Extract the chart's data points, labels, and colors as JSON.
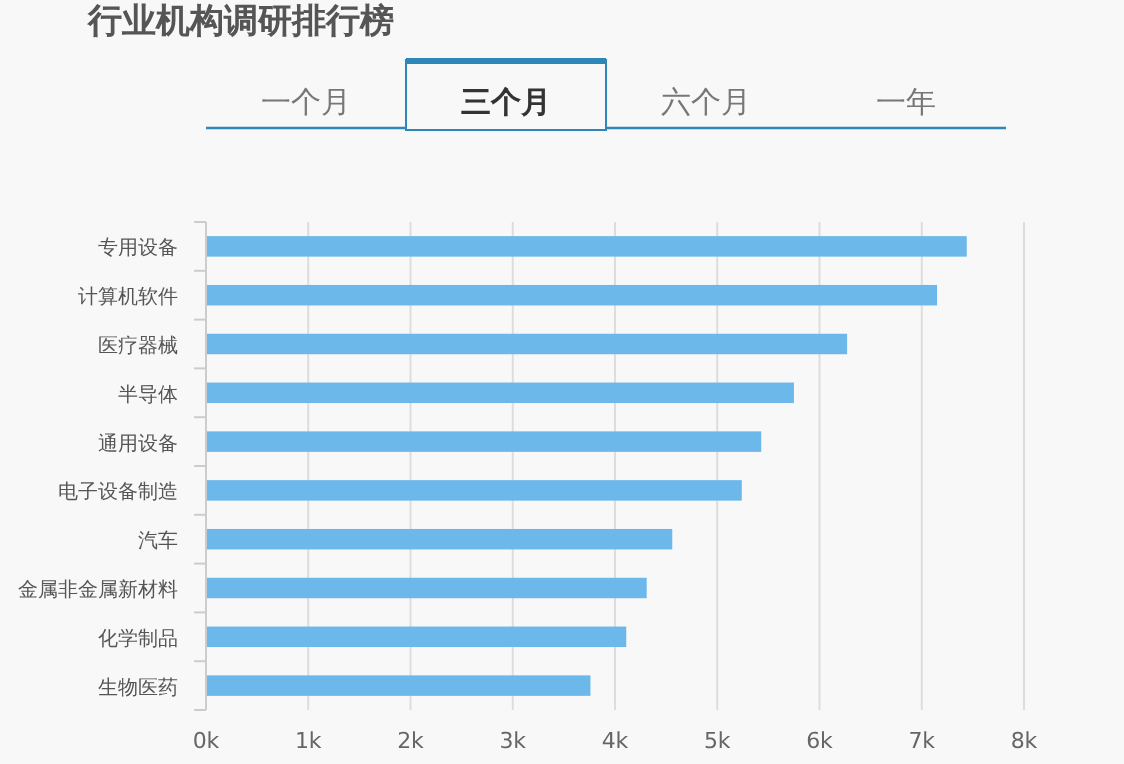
{
  "chart_data": {
    "type": "bar",
    "orientation": "horizontal",
    "title": "行业机构调研排行榜",
    "annotations": [
      "一个月",
      "三个月",
      "六个月",
      "一年"
    ],
    "categories": [
      "专用设备",
      "计算机软件",
      "医疗器械",
      "半导体",
      "通用设备",
      "电子设备制造",
      "汽车",
      "金属非金属新材料",
      "化学制品",
      "生物医药"
    ],
    "values": [
      7440,
      7150,
      6270,
      5750,
      5430,
      5240,
      4560,
      4310,
      4110,
      3760
    ],
    "color": "#6cb8ea",
    "xlim": [
      0,
      8000
    ],
    "xticks": [
      {
        "value": 0,
        "label": "0k"
      },
      {
        "value": 1000,
        "label": "1k"
      },
      {
        "value": 2000,
        "label": "2k"
      },
      {
        "value": 3000,
        "label": "3k"
      },
      {
        "value": 4000,
        "label": "4k"
      },
      {
        "value": 5000,
        "label": "5k"
      },
      {
        "value": 6000,
        "label": "6k"
      },
      {
        "value": 7000,
        "label": "7k"
      },
      {
        "value": 8000,
        "label": "8k"
      }
    ],
    "grid": "x"
  }
}
